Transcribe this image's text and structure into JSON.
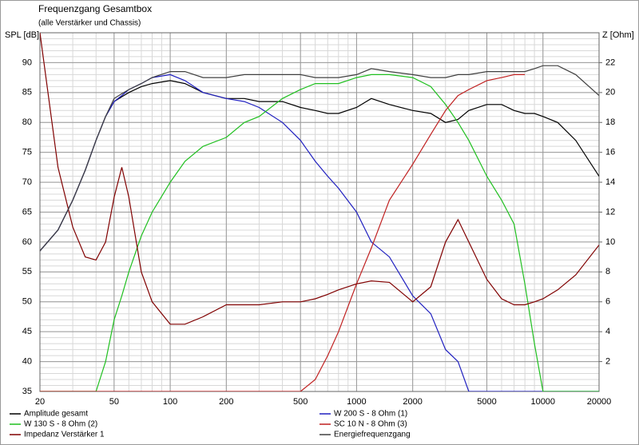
{
  "chart_data": {
    "type": "line",
    "title": "Frequenzgang Gesamtbox",
    "subtitle": "(alle Verstärker und Chassis)",
    "y_label": "SPL [dB]",
    "y2_label": "Z [Ohm]",
    "log_x": true,
    "grid": true,
    "minor_grid": true,
    "x": [
      20,
      25,
      30,
      35,
      40,
      45,
      50,
      55,
      60,
      70,
      80,
      100,
      120,
      150,
      200,
      250,
      300,
      400,
      500,
      600,
      700,
      800,
      1000,
      1200,
      1500,
      2000,
      2500,
      3000,
      3500,
      4000,
      5000,
      6000,
      7000,
      8000,
      9000,
      10000,
      12000,
      15000,
      20000
    ],
    "xlim": [
      20,
      20000
    ],
    "xticks": [
      20,
      50,
      100,
      200,
      500,
      1000,
      2000,
      5000,
      10000,
      20000
    ],
    "ylim": [
      35,
      95
    ],
    "yticks": [
      35,
      40,
      45,
      50,
      55,
      60,
      65,
      70,
      75,
      80,
      85,
      90
    ],
    "y2lim": [
      0,
      24
    ],
    "y2ticks": [
      2,
      4,
      6,
      8,
      10,
      12,
      14,
      16,
      18,
      20,
      22
    ],
    "series": [
      {
        "name": "Amplitude gesamt",
        "color": "#000000",
        "values": [
          58.5,
          62,
          67,
          72,
          77,
          81,
          83.5,
          84.3,
          85,
          86,
          86.5,
          87,
          86.5,
          85,
          84,
          84,
          83.5,
          83.5,
          82.5,
          82,
          81.5,
          81.5,
          82.5,
          84,
          83,
          82,
          81.5,
          80,
          80.5,
          82,
          83,
          83,
          82,
          81.5,
          81.5,
          81,
          80,
          77,
          71
        ]
      },
      {
        "name": "W 200 S - 8 Ohm (1)",
        "color": "#2020c0",
        "values": [
          58.5,
          62,
          67,
          72,
          77,
          81,
          83.5,
          84.5,
          85.5,
          86.5,
          87.5,
          88,
          87,
          85,
          84,
          83.5,
          82.5,
          80,
          77,
          73.5,
          71,
          69,
          65,
          60,
          57.5,
          51,
          48,
          42,
          40,
          35,
          35,
          35,
          35,
          35,
          35,
          35,
          35,
          35,
          35
        ]
      },
      {
        "name": "W 130 S - 8 Ohm (2)",
        "color": "#20c020",
        "values": [
          35,
          35,
          35,
          35,
          35,
          40,
          47,
          51,
          55,
          61,
          65,
          70,
          73.5,
          76,
          77.5,
          80,
          81,
          84,
          85.5,
          86.5,
          86.5,
          86.5,
          87.5,
          88,
          88,
          87.5,
          86,
          83,
          80,
          77,
          71,
          67,
          63,
          53,
          43,
          35,
          35,
          35,
          35
        ]
      },
      {
        "name": "SC 10 N - 8 Ohm (3)",
        "color": "#c02020",
        "values": [
          35,
          35,
          35,
          35,
          35,
          35,
          35,
          35,
          35,
          35,
          35,
          35,
          35,
          35,
          35,
          35,
          35,
          35,
          35,
          37,
          41,
          45,
          53,
          59,
          67,
          73,
          78,
          82,
          84.5,
          85.5,
          87,
          87.5,
          88,
          88,
          null,
          null,
          null,
          null,
          null
        ]
      },
      {
        "name": "Impedanz Verstärker 1",
        "color": "#800000",
        "axis": "y2",
        "values": [
          24,
          15,
          11,
          9,
          8.8,
          10,
          13,
          15,
          13,
          8,
          6,
          4.5,
          4.5,
          5,
          5.8,
          5.8,
          5.8,
          6,
          6,
          6.2,
          6.5,
          6.8,
          7.2,
          7.4,
          7.3,
          6,
          7,
          10,
          11.5,
          10,
          7.5,
          6.2,
          5.8,
          5.8,
          6,
          6.2,
          6.8,
          7.8,
          9.8
        ]
      },
      {
        "name": "Energiefrequenzgang",
        "color": "#404040",
        "values": [
          58.5,
          62,
          67,
          72,
          77,
          81,
          84,
          84.8,
          85.5,
          86.5,
          87.5,
          88.5,
          88.5,
          87.5,
          87.5,
          88,
          88,
          88,
          88,
          87.5,
          87.5,
          87.5,
          88,
          89,
          88.5,
          88,
          87.5,
          87.5,
          88,
          88,
          88.5,
          88.5,
          88.5,
          88.5,
          89,
          89.5,
          89.5,
          88,
          84.5
        ]
      }
    ]
  }
}
